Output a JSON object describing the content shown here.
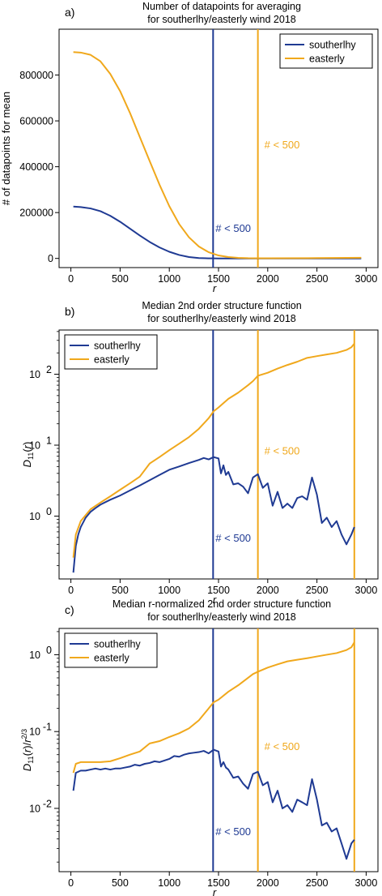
{
  "colors": {
    "southerlhy": "#1f3a93",
    "easterly": "#f0a81c"
  },
  "chart_data": [
    {
      "type": "line",
      "panel_label": "a)",
      "title_lines": [
        "Number of datapoints for averaging",
        "for southerlhy/easterly wind 2018"
      ],
      "ylabel": "# of datapoints for mean",
      "xlabel": "r",
      "yscale": "linear",
      "xlim": [
        -120,
        3120
      ],
      "ylim": [
        -40000,
        1000000
      ],
      "xticks": [
        0,
        500,
        1000,
        1500,
        2000,
        2500,
        3000
      ],
      "xtick_labels": [
        "0",
        "500",
        "1000",
        "1500",
        "2000",
        "2500",
        "3000"
      ],
      "yticks": [
        0,
        200000,
        400000,
        600000,
        800000
      ],
      "ytick_labels": [
        "0",
        "200000",
        "400000",
        "600000",
        "800000"
      ],
      "legend": {
        "position": "top-right",
        "entries": [
          "southerlhy",
          "easterly"
        ]
      },
      "series": [
        {
          "name": "southerlhy",
          "x": [
            25,
            100,
            200,
            300,
            400,
            500,
            600,
            700,
            800,
            900,
            1000,
            1100,
            1200,
            1300,
            1400,
            1450,
            1500,
            1700,
            2000,
            2500,
            2950
          ],
          "values": [
            226000,
            224000,
            218000,
            206000,
            186000,
            160000,
            130000,
            100000,
            72000,
            48000,
            29000,
            15000,
            6000,
            1500,
            300,
            100,
            0,
            0,
            0,
            0,
            0
          ]
        },
        {
          "name": "easterly",
          "x": [
            25,
            100,
            200,
            300,
            400,
            500,
            600,
            700,
            800,
            900,
            1000,
            1100,
            1200,
            1300,
            1400,
            1500,
            1600,
            1700,
            1800,
            1900,
            2000,
            2500,
            2950
          ],
          "values": [
            900000,
            898000,
            888000,
            860000,
            805000,
            730000,
            635000,
            530000,
            425000,
            322000,
            228000,
            150000,
            92000,
            52000,
            27000,
            13000,
            6000,
            2500,
            1000,
            600,
            500,
            1500,
            3000
          ]
        }
      ],
      "vlines": [
        {
          "series": "southerlhy",
          "x": 1445,
          "label": "# < 500",
          "label_at": "lower"
        },
        {
          "series": "easterly",
          "x": 1900,
          "label": "# < 500",
          "label_at": "upper"
        }
      ]
    },
    {
      "type": "line",
      "panel_label": "b)",
      "title_lines": [
        "Median 2nd order structure function",
        "for southerlhy/easterly wind 2018"
      ],
      "ylabel": "D11(r)",
      "xlabel": "r",
      "yscale": "log",
      "xlim": [
        -120,
        3120
      ],
      "ylim": [
        0.13,
        420
      ],
      "xticks": [
        0,
        500,
        1000,
        1500,
        2000,
        2500,
        3000
      ],
      "xtick_labels": [
        "0",
        "500",
        "1000",
        "1500",
        "2000",
        "2500",
        "3000"
      ],
      "yticks": [
        1,
        10,
        100
      ],
      "legend": {
        "position": "top-left",
        "entries": [
          "southerlhy",
          "easterly"
        ]
      },
      "series": [
        {
          "name": "southerlhy",
          "x": [
            25,
            50,
            75,
            100,
            150,
            200,
            250,
            300,
            400,
            500,
            600,
            700,
            800,
            900,
            1000,
            1100,
            1200,
            1300,
            1350,
            1400,
            1450,
            1500,
            1525,
            1550,
            1575,
            1600,
            1650,
            1700,
            1750,
            1800,
            1850,
            1900,
            1950,
            2000,
            2050,
            2100,
            2150,
            2200,
            2250,
            2300,
            2350,
            2400,
            2450,
            2500,
            2550,
            2600,
            2650,
            2700,
            2750,
            2800,
            2850,
            2880
          ],
          "values": [
            0.16,
            0.38,
            0.55,
            0.7,
            0.95,
            1.15,
            1.3,
            1.45,
            1.7,
            1.95,
            2.3,
            2.7,
            3.2,
            3.8,
            4.5,
            5.0,
            5.6,
            6.2,
            6.6,
            6.3,
            6.8,
            6.5,
            4.0,
            5.2,
            3.8,
            4.2,
            2.8,
            2.9,
            2.6,
            2.1,
            3.5,
            3.9,
            2.5,
            2.9,
            1.4,
            2.2,
            1.3,
            1.5,
            1.3,
            1.8,
            1.9,
            1.7,
            3.5,
            2.0,
            0.8,
            0.95,
            0.7,
            0.85,
            0.55,
            0.4,
            0.55,
            0.7
          ]
        },
        {
          "name": "easterly",
          "x": [
            25,
            50,
            100,
            200,
            300,
            400,
            500,
            600,
            700,
            800,
            900,
            1000,
            1100,
            1200,
            1300,
            1400,
            1450,
            1500,
            1600,
            1700,
            1800,
            1850,
            1900,
            2000,
            2100,
            2200,
            2300,
            2400,
            2500,
            2600,
            2700,
            2800,
            2850,
            2880
          ],
          "values": [
            0.26,
            0.55,
            0.85,
            1.25,
            1.55,
            1.9,
            2.35,
            2.9,
            3.6,
            5.5,
            6.8,
            8.5,
            10.5,
            13,
            17,
            24,
            30,
            34,
            45,
            55,
            70,
            80,
            95,
            105,
            120,
            135,
            150,
            170,
            180,
            190,
            200,
            220,
            240,
            270
          ]
        }
      ],
      "vlines": [
        {
          "series": "southerlhy",
          "x": 1445,
          "label": "# < 500",
          "label_at": "lower"
        },
        {
          "series": "easterly",
          "x": 1900,
          "label": "# < 500",
          "label_at": "upper"
        },
        {
          "series": "easterly",
          "x": 2880
        }
      ]
    },
    {
      "type": "line",
      "panel_label": "c)",
      "title_lines": [
        "Median r-normalized 2nd order structure function",
        "for southerlhy/easterly wind 2018"
      ],
      "ylabel": "D11(r)/r2/3",
      "xlabel": "r",
      "yscale": "log",
      "xlim": [
        -120,
        3120
      ],
      "ylim": [
        0.0015,
        2.2
      ],
      "xticks": [
        0,
        500,
        1000,
        1500,
        2000,
        2500,
        3000
      ],
      "xtick_labels": [
        "0",
        "500",
        "1000",
        "1500",
        "2000",
        "2500",
        "3000"
      ],
      "yticks": [
        0.01,
        0.1,
        1
      ],
      "legend": {
        "position": "top-left",
        "entries": [
          "southerlhy",
          "easterly"
        ]
      },
      "series": [
        {
          "name": "southerlhy",
          "x": [
            25,
            50,
            100,
            150,
            200,
            250,
            300,
            350,
            400,
            450,
            500,
            550,
            600,
            650,
            700,
            750,
            800,
            850,
            900,
            950,
            1000,
            1050,
            1100,
            1150,
            1200,
            1250,
            1300,
            1350,
            1400,
            1450,
            1500,
            1525,
            1550,
            1575,
            1600,
            1650,
            1700,
            1750,
            1800,
            1850,
            1900,
            1950,
            2000,
            2050,
            2100,
            2150,
            2200,
            2250,
            2300,
            2350,
            2400,
            2450,
            2500,
            2550,
            2600,
            2650,
            2700,
            2750,
            2800,
            2850,
            2880
          ],
          "values": [
            0.017,
            0.029,
            0.031,
            0.031,
            0.032,
            0.033,
            0.032,
            0.033,
            0.032,
            0.033,
            0.033,
            0.034,
            0.035,
            0.037,
            0.036,
            0.038,
            0.039,
            0.041,
            0.04,
            0.042,
            0.044,
            0.048,
            0.047,
            0.05,
            0.052,
            0.053,
            0.054,
            0.056,
            0.052,
            0.058,
            0.055,
            0.035,
            0.04,
            0.034,
            0.032,
            0.025,
            0.026,
            0.021,
            0.018,
            0.028,
            0.03,
            0.02,
            0.022,
            0.012,
            0.017,
            0.01,
            0.011,
            0.009,
            0.013,
            0.012,
            0.011,
            0.024,
            0.013,
            0.006,
            0.0065,
            0.005,
            0.0055,
            0.0035,
            0.0022,
            0.0035,
            0.0039
          ]
        },
        {
          "name": "easterly",
          "x": [
            25,
            50,
            100,
            200,
            300,
            400,
            500,
            600,
            700,
            800,
            900,
            1000,
            1100,
            1200,
            1300,
            1400,
            1450,
            1500,
            1600,
            1700,
            1800,
            1850,
            1900,
            2000,
            2100,
            2200,
            2300,
            2400,
            2500,
            2600,
            2700,
            2800,
            2850,
            2880
          ],
          "values": [
            0.029,
            0.038,
            0.04,
            0.04,
            0.04,
            0.041,
            0.045,
            0.05,
            0.055,
            0.07,
            0.075,
            0.085,
            0.095,
            0.11,
            0.14,
            0.2,
            0.24,
            0.26,
            0.33,
            0.4,
            0.5,
            0.56,
            0.6,
            0.68,
            0.75,
            0.82,
            0.86,
            0.9,
            0.95,
            1.0,
            1.05,
            1.15,
            1.25,
            1.45
          ]
        }
      ],
      "vlines": [
        {
          "series": "southerlhy",
          "x": 1445,
          "label": "# < 500",
          "label_at": "lower"
        },
        {
          "series": "easterly",
          "x": 1900,
          "label": "# < 500",
          "label_at": "upper"
        },
        {
          "series": "easterly",
          "x": 2880
        }
      ]
    }
  ]
}
